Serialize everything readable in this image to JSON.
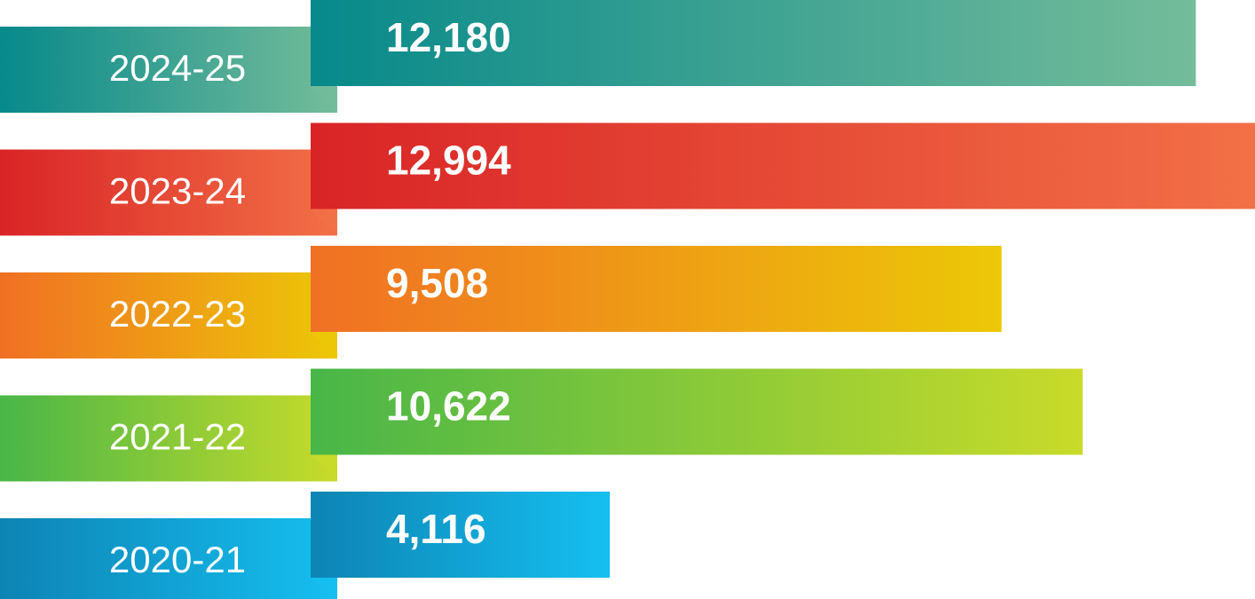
{
  "chart_data": {
    "type": "bar",
    "orientation": "horizontal",
    "categories": [
      "2024-25",
      "2023-24",
      "2022-23",
      "2021-22",
      "2020-21"
    ],
    "values": [
      12180,
      12994,
      9508,
      10622,
      4116
    ],
    "value_labels": [
      "12,180",
      "12,994",
      "9,508",
      "10,622",
      "4,116"
    ],
    "colors": [
      [
        "#07898a",
        "#74bc9a"
      ],
      [
        "#d92426",
        "#f27046"
      ],
      [
        "#f07024",
        "#ecc807"
      ],
      [
        "#48b648",
        "#c8db2a"
      ],
      [
        "#0d84b4",
        "#15bff0"
      ]
    ]
  }
}
